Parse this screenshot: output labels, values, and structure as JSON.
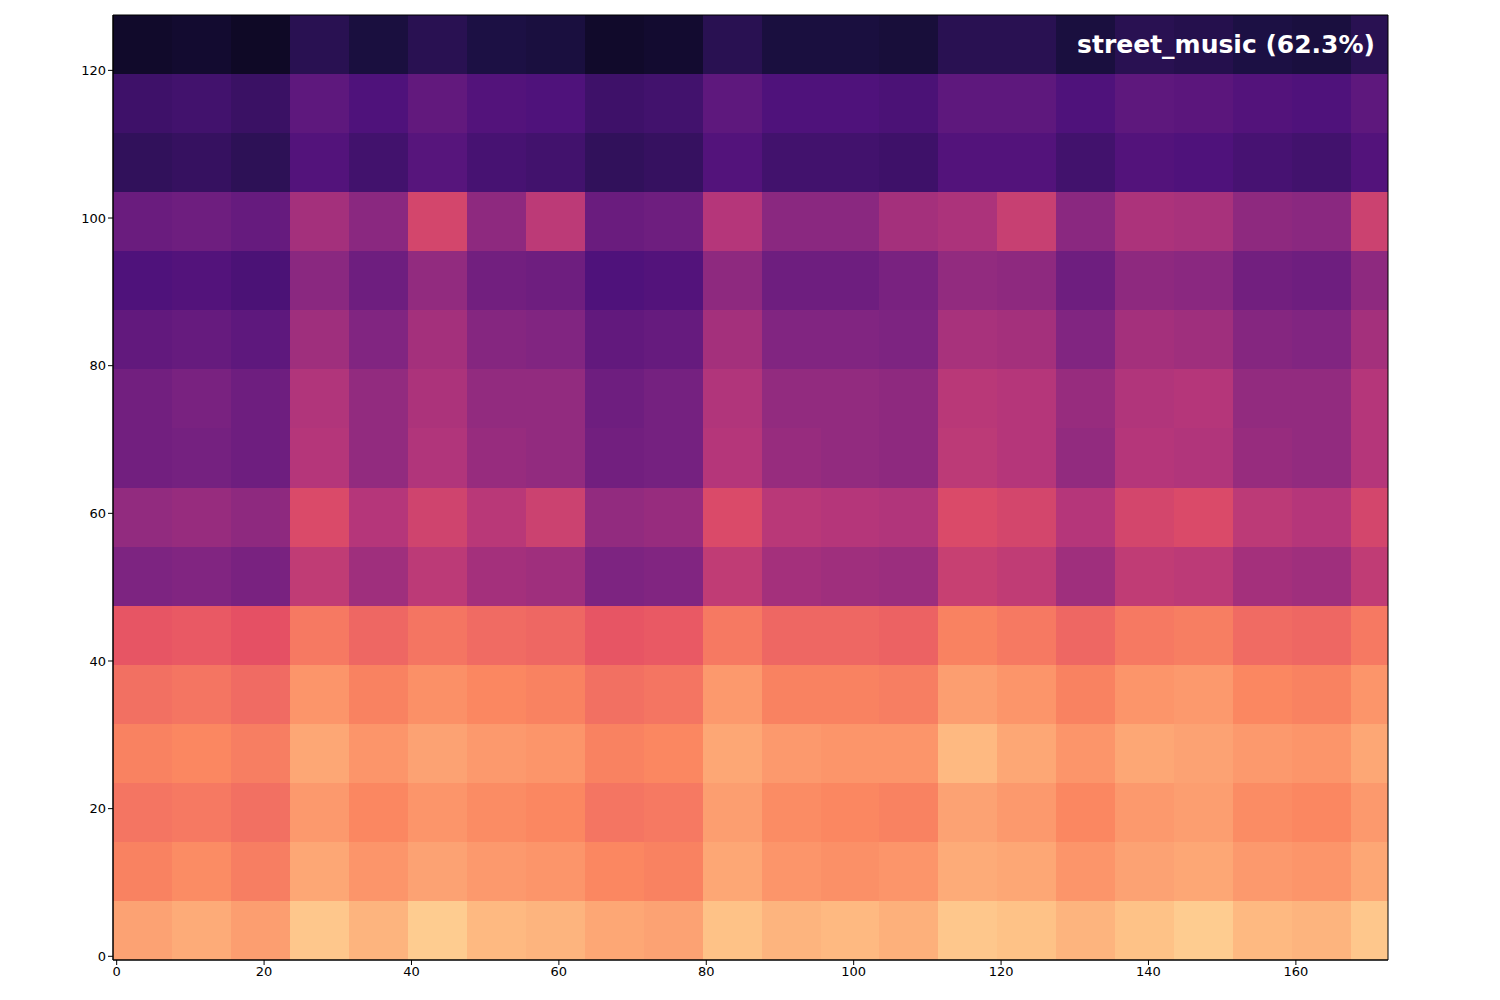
{
  "chart_data": {
    "type": "heatmap",
    "title": "street_music (62.3%)",
    "xlim": [
      -0.5,
      172.5
    ],
    "ylim": [
      -0.5,
      127.5
    ],
    "xticks": [
      0,
      20,
      40,
      60,
      80,
      100,
      120,
      140,
      160
    ],
    "yticks": [
      0,
      20,
      40,
      60,
      80,
      100,
      120
    ],
    "x_edges": [
      -0.5,
      7.5,
      15.5,
      23.5,
      31.5,
      39.5,
      47.5,
      55.5,
      63.5,
      71.5,
      79.5,
      87.5,
      95.5,
      103.5,
      111.5,
      119.5,
      127.5,
      135.5,
      143.5,
      151.5,
      159.5,
      167.5,
      172.5
    ],
    "y_edges": [
      -0.5,
      7.5,
      15.5,
      23.5,
      31.5,
      39.5,
      47.5,
      55.5,
      63.5,
      71.5,
      79.5,
      87.5,
      95.5,
      103.5,
      111.5,
      119.5,
      127.5
    ],
    "color_range": [
      0,
      1
    ],
    "cells": [
      [
        0.81,
        0.83,
        0.8,
        0.89,
        0.85,
        0.9,
        0.86,
        0.85,
        0.82,
        0.81,
        0.88,
        0.85,
        0.86,
        0.84,
        0.89,
        0.88,
        0.85,
        0.88,
        0.9,
        0.86,
        0.85,
        0.89
      ],
      [
        0.74,
        0.76,
        0.73,
        0.82,
        0.78,
        0.81,
        0.79,
        0.78,
        0.75,
        0.74,
        0.82,
        0.78,
        0.77,
        0.78,
        0.83,
        0.82,
        0.78,
        0.81,
        0.82,
        0.79,
        0.78,
        0.82
      ],
      [
        0.71,
        0.72,
        0.7,
        0.79,
        0.75,
        0.78,
        0.76,
        0.75,
        0.71,
        0.72,
        0.8,
        0.76,
        0.75,
        0.74,
        0.81,
        0.79,
        0.75,
        0.79,
        0.8,
        0.76,
        0.75,
        0.79
      ],
      [
        0.74,
        0.75,
        0.73,
        0.82,
        0.78,
        0.81,
        0.79,
        0.78,
        0.74,
        0.75,
        0.82,
        0.79,
        0.78,
        0.78,
        0.86,
        0.82,
        0.78,
        0.82,
        0.81,
        0.79,
        0.78,
        0.82
      ],
      [
        0.7,
        0.71,
        0.69,
        0.78,
        0.74,
        0.77,
        0.75,
        0.74,
        0.7,
        0.71,
        0.79,
        0.74,
        0.74,
        0.73,
        0.8,
        0.78,
        0.74,
        0.78,
        0.79,
        0.75,
        0.74,
        0.78
      ],
      [
        0.64,
        0.65,
        0.63,
        0.72,
        0.68,
        0.71,
        0.69,
        0.68,
        0.64,
        0.65,
        0.72,
        0.68,
        0.68,
        0.67,
        0.74,
        0.72,
        0.68,
        0.72,
        0.73,
        0.69,
        0.68,
        0.72
      ],
      [
        0.37,
        0.38,
        0.36,
        0.53,
        0.45,
        0.52,
        0.46,
        0.45,
        0.37,
        0.38,
        0.53,
        0.46,
        0.45,
        0.44,
        0.55,
        0.53,
        0.45,
        0.53,
        0.52,
        0.46,
        0.45,
        0.53
      ],
      [
        0.42,
        0.43,
        0.41,
        0.6,
        0.5,
        0.57,
        0.51,
        0.56,
        0.42,
        0.43,
        0.6,
        0.51,
        0.5,
        0.49,
        0.6,
        0.58,
        0.5,
        0.58,
        0.6,
        0.52,
        0.5,
        0.58
      ],
      [
        0.34,
        0.35,
        0.33,
        0.5,
        0.42,
        0.49,
        0.43,
        0.42,
        0.34,
        0.35,
        0.5,
        0.43,
        0.42,
        0.41,
        0.52,
        0.5,
        0.42,
        0.5,
        0.49,
        0.43,
        0.42,
        0.5
      ],
      [
        0.34,
        0.36,
        0.33,
        0.49,
        0.42,
        0.48,
        0.42,
        0.42,
        0.33,
        0.35,
        0.49,
        0.42,
        0.42,
        0.41,
        0.51,
        0.5,
        0.43,
        0.49,
        0.5,
        0.42,
        0.42,
        0.5
      ],
      [
        0.3,
        0.31,
        0.29,
        0.45,
        0.38,
        0.46,
        0.39,
        0.38,
        0.3,
        0.31,
        0.46,
        0.38,
        0.38,
        0.37,
        0.47,
        0.46,
        0.38,
        0.46,
        0.45,
        0.39,
        0.38,
        0.46
      ],
      [
        0.25,
        0.26,
        0.24,
        0.4,
        0.33,
        0.42,
        0.34,
        0.33,
        0.25,
        0.26,
        0.41,
        0.33,
        0.33,
        0.36,
        0.42,
        0.41,
        0.33,
        0.41,
        0.4,
        0.34,
        0.33,
        0.41
      ],
      [
        0.32,
        0.33,
        0.31,
        0.46,
        0.4,
        0.58,
        0.41,
        0.52,
        0.32,
        0.33,
        0.5,
        0.4,
        0.4,
        0.46,
        0.48,
        0.55,
        0.4,
        0.48,
        0.47,
        0.41,
        0.4,
        0.56
      ],
      [
        0.18,
        0.19,
        0.17,
        0.26,
        0.22,
        0.27,
        0.23,
        0.22,
        0.18,
        0.19,
        0.26,
        0.22,
        0.22,
        0.21,
        0.26,
        0.26,
        0.22,
        0.26,
        0.25,
        0.23,
        0.22,
        0.26
      ],
      [
        0.21,
        0.22,
        0.2,
        0.29,
        0.25,
        0.3,
        0.26,
        0.25,
        0.21,
        0.22,
        0.29,
        0.25,
        0.25,
        0.24,
        0.29,
        0.29,
        0.25,
        0.29,
        0.28,
        0.26,
        0.25,
        0.29
      ],
      [
        0.08,
        0.09,
        0.07,
        0.16,
        0.12,
        0.16,
        0.13,
        0.12,
        0.08,
        0.09,
        0.16,
        0.12,
        0.12,
        0.11,
        0.16,
        0.16,
        0.12,
        0.16,
        0.15,
        0.13,
        0.12,
        0.16
      ]
    ]
  }
}
